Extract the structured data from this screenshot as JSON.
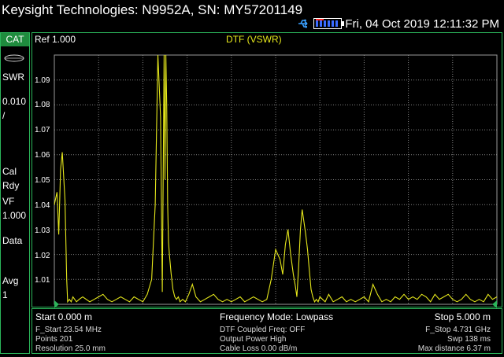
{
  "header": {
    "title": "Keysight Technologies: N9952A, SN: MY57201149",
    "datetime": "Fri, 04 Oct 2019 12:11:32 PM",
    "icons": [
      "usb-icon",
      "battery-icon"
    ]
  },
  "left_panel": {
    "mode": "CAT",
    "format": "SWR",
    "scale_value": "0.010",
    "scale_unit": "/",
    "cal_line1": "Cal",
    "cal_line2": "Rdy",
    "vf_label": "VF",
    "vf_value": "1.000",
    "data_label": "Data",
    "avg_label": "Avg",
    "avg_value": "1"
  },
  "plot": {
    "ref_label": "Ref 1.000",
    "trace_title": "DTF (VSWR)",
    "trace_color": "#e6e81c",
    "grid_color": "#808080",
    "y_ticks": [
      "1.09",
      "1.08",
      "1.07",
      "1.06",
      "1.05",
      "1.04",
      "1.03",
      "1.02",
      "1.01"
    ]
  },
  "chart_data": {
    "type": "line",
    "title": "DTF (VSWR)",
    "xlabel": "",
    "ylabel": "",
    "x_unit": "m",
    "xlim": [
      0.0,
      5.0
    ],
    "ylim": [
      1.0,
      1.1
    ],
    "grid": true,
    "series": [
      {
        "x": [
          0.0,
          0.03,
          0.05,
          0.07,
          0.09,
          0.12,
          0.14,
          0.15,
          0.17,
          0.19,
          0.21,
          0.23,
          0.25,
          0.28,
          0.32,
          0.36,
          0.4,
          0.45,
          0.5,
          0.55,
          0.6,
          0.65,
          0.7,
          0.75,
          0.8,
          0.85,
          0.9,
          0.95,
          1.0,
          1.05,
          1.1,
          1.14,
          1.17,
          1.2,
          1.22,
          1.24,
          1.25,
          1.26,
          1.27,
          1.28,
          1.29,
          1.3,
          1.32,
          1.34,
          1.36,
          1.38,
          1.4,
          1.42,
          1.45,
          1.48,
          1.52,
          1.56,
          1.6,
          1.65,
          1.7,
          1.75,
          1.8,
          1.85,
          1.9,
          1.95,
          2.0,
          2.05,
          2.1,
          2.15,
          2.2,
          2.25,
          2.3,
          2.35,
          2.4,
          2.45,
          2.5,
          2.55,
          2.58,
          2.61,
          2.64,
          2.67,
          2.7,
          2.72,
          2.74,
          2.76,
          2.78,
          2.8,
          2.82,
          2.84,
          2.86,
          2.88,
          2.9,
          2.92,
          2.94,
          2.96,
          2.98,
          3.0,
          3.03,
          3.06,
          3.1,
          3.15,
          3.2,
          3.25,
          3.3,
          3.35,
          3.4,
          3.45,
          3.5,
          3.55,
          3.6,
          3.65,
          3.7,
          3.75,
          3.8,
          3.85,
          3.9,
          3.95,
          4.0,
          4.05,
          4.1,
          4.15,
          4.2,
          4.25,
          4.3,
          4.35,
          4.4,
          4.45,
          4.5,
          4.55,
          4.6,
          4.65,
          4.7,
          4.75,
          4.8,
          4.85,
          4.9,
          4.95,
          5.0
        ],
        "values": [
          1.04,
          1.045,
          1.028,
          1.054,
          1.061,
          1.042,
          1.01,
          1.001,
          1.002,
          1.001,
          1.003,
          1.002,
          1.001,
          1.002,
          1.003,
          1.002,
          1.001,
          1.002,
          1.003,
          1.004,
          1.002,
          1.001,
          1.002,
          1.003,
          1.002,
          1.001,
          1.003,
          1.002,
          1.001,
          1.004,
          1.01,
          1.04,
          1.1,
          1.075,
          1.005,
          1.1,
          1.05,
          1.1,
          1.08,
          1.04,
          1.025,
          1.02,
          1.012,
          1.006,
          1.003,
          1.002,
          1.003,
          1.001,
          1.002,
          1.001,
          1.004,
          1.008,
          1.003,
          1.001,
          1.002,
          1.003,
          1.004,
          1.002,
          1.001,
          1.002,
          1.001,
          1.002,
          1.003,
          1.001,
          1.002,
          1.003,
          1.002,
          1.001,
          1.002,
          1.01,
          1.022,
          1.018,
          1.012,
          1.024,
          1.03,
          1.02,
          1.012,
          1.008,
          1.003,
          1.015,
          1.03,
          1.038,
          1.033,
          1.028,
          1.022,
          1.014,
          1.006,
          1.003,
          1.001,
          1.002,
          1.001,
          1.003,
          1.002,
          1.001,
          1.004,
          1.001,
          1.002,
          1.003,
          1.001,
          1.002,
          1.001,
          1.002,
          1.003,
          1.001,
          1.008,
          1.004,
          1.001,
          1.002,
          1.001,
          1.003,
          1.002,
          1.004,
          1.002,
          1.003,
          1.002,
          1.004,
          1.003,
          1.001,
          1.004,
          1.002,
          1.003,
          1.004,
          1.002,
          1.001,
          1.002,
          1.004,
          1.002,
          1.001,
          1.002,
          1.001,
          1.004,
          1.002,
          1.003
        ]
      }
    ]
  },
  "footer": {
    "start": "Start 0.000 m",
    "mode": "Frequency Mode: Lowpass",
    "stop": "Stop 5.000 m",
    "f_start": "F_Start 23.54 MHz",
    "points": "Points 201",
    "resolution": "Resolution 25.0 mm",
    "coupled": "DTF Coupled Freq:  OFF",
    "power": "Output Power High",
    "cable_loss": "Cable Loss 0.00  dB/m",
    "f_stop": "F_Stop 4.731 GHz",
    "swp": "Swp 138 ms",
    "max_distance": "Max distance 6.37  m"
  }
}
